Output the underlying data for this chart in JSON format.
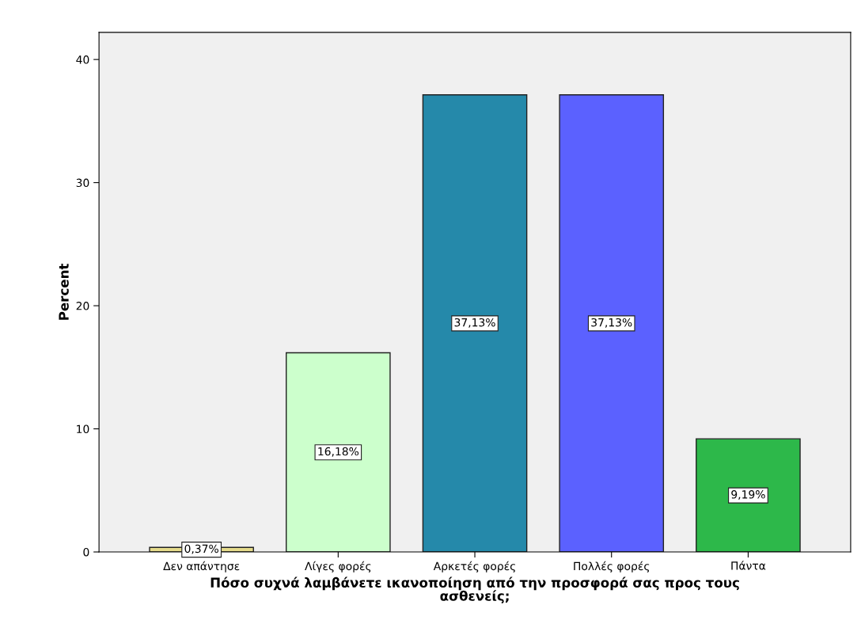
{
  "chart_data": {
    "type": "bar",
    "xlabel": "Πόσο συχνά λαμβάνετε ικανοποίηση από την προσφορά σας προς τους\nασθενείς;",
    "ylabel": "Percent",
    "categories": [
      "Δεν απάντησε",
      "Λίγες φορές",
      "Αρκετές φορές",
      "Πολλές φορές",
      "Πάντα"
    ],
    "values": [
      0.37,
      16.18,
      37.13,
      37.13,
      9.19
    ],
    "value_labels": [
      "0,37%",
      "16,18%",
      "37,13%",
      "37,13%",
      "9,19%"
    ],
    "colors": [
      "#e6dc8c",
      "#ccffcc",
      "#2589aa",
      "#5b61ff",
      "#2db84a"
    ],
    "ylim": [
      0,
      42.2
    ],
    "yticks": [
      0,
      10,
      20,
      30,
      40
    ],
    "grid": false,
    "legend": false
  }
}
